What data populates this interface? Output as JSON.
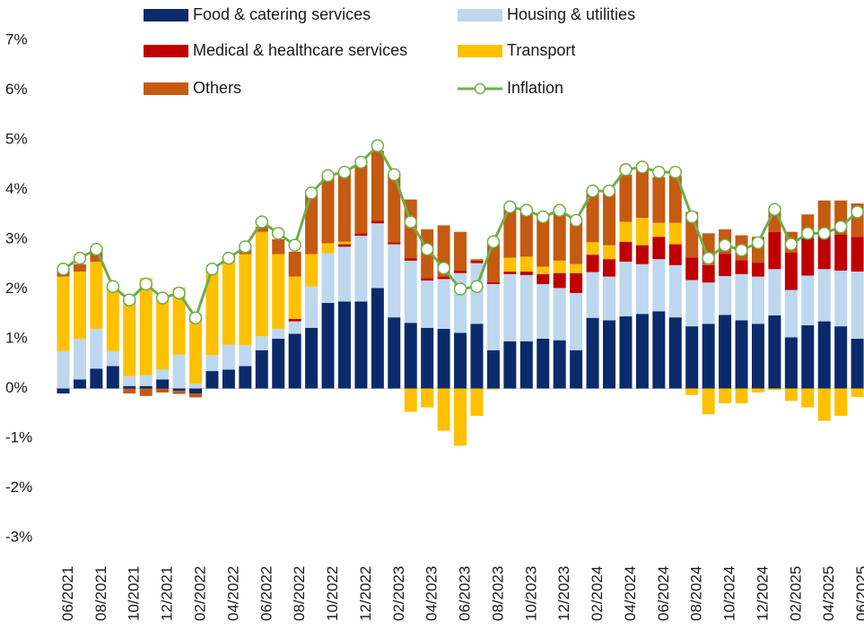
{
  "chart_data": {
    "type": "bar",
    "stacked": true,
    "categories": [
      "06/2021",
      null,
      "08/2021",
      null,
      "10/2021",
      null,
      "12/2021",
      null,
      "02/2022",
      null,
      "04/2022",
      null,
      "06/2022",
      null,
      "08/2022",
      null,
      "10/2022",
      null,
      "12/2022",
      null,
      "02/2023",
      null,
      "04/2023",
      null,
      "06/2023",
      null,
      "08/2023",
      null,
      "10/2023",
      null,
      "12/2023",
      null,
      "02/2024",
      null,
      "04/2024",
      null,
      "06/2024",
      null,
      "08/2024",
      null,
      "10/2024",
      null,
      "12/2024",
      null,
      "02/2025",
      null,
      "04/2025",
      null,
      "06/2025"
    ],
    "series": [
      {
        "name": "Food & catering services",
        "color": "#0b2a6b",
        "values": [
          -0.1,
          0.18,
          0.4,
          0.45,
          0.05,
          0.05,
          0.18,
          -0.05,
          -0.1,
          0.35,
          0.38,
          0.45,
          0.77,
          1.0,
          1.1,
          1.22,
          1.72,
          1.75,
          1.75,
          2.02,
          1.43,
          1.32,
          1.22,
          1.2,
          1.12,
          1.3,
          0.77,
          0.95,
          0.95,
          1.0,
          0.97,
          0.77,
          1.42,
          1.37,
          1.45,
          1.5,
          1.55,
          1.43,
          1.25,
          1.3,
          1.48,
          1.37,
          1.3,
          1.47,
          1.03,
          1.27,
          1.35,
          1.25,
          1.0
        ]
      },
      {
        "name": "Housing & utilities",
        "color": "#bdd7ee",
        "values": [
          0.75,
          0.82,
          0.8,
          0.3,
          0.2,
          0.22,
          0.2,
          0.68,
          0.1,
          0.32,
          0.5,
          0.42,
          0.28,
          0.2,
          0.25,
          0.83,
          1.0,
          1.1,
          1.32,
          1.3,
          1.47,
          1.25,
          0.95,
          1.0,
          1.2,
          1.22,
          1.33,
          1.35,
          1.33,
          1.1,
          1.05,
          1.15,
          0.92,
          0.88,
          1.1,
          1.0,
          1.05,
          1.05,
          0.93,
          0.83,
          0.78,
          0.93,
          0.95,
          0.93,
          0.95,
          1.0,
          1.05,
          1.12,
          1.35
        ]
      },
      {
        "name": "Medical & healthcare services",
        "color": "#c00000",
        "values": [
          0,
          0,
          0,
          0,
          0,
          0,
          0,
          0,
          0,
          0,
          0,
          0,
          0,
          0,
          0.05,
          0,
          0,
          0.05,
          0.05,
          0.05,
          0.04,
          0.05,
          0.05,
          0.05,
          0.05,
          0.05,
          0.04,
          0.05,
          0.07,
          0.2,
          0.3,
          0.4,
          0.35,
          0.35,
          0.4,
          0.38,
          0.45,
          0.42,
          0.45,
          0.35,
          0.45,
          0.28,
          0.28,
          0.75,
          0.75,
          0.75,
          0.7,
          0.72,
          0.7
        ]
      },
      {
        "name": "Transport",
        "color": "#ffc000",
        "values": [
          1.5,
          1.35,
          1.35,
          1.25,
          1.5,
          1.95,
          1.47,
          1.35,
          1.4,
          1.73,
          1.67,
          1.83,
          2.1,
          1.5,
          0.85,
          0.65,
          0.2,
          0.05,
          0,
          0,
          0,
          -0.47,
          -0.38,
          -0.85,
          -1.15,
          -0.55,
          -0.02,
          0.28,
          0.3,
          0.15,
          0.25,
          0.18,
          0.25,
          0.28,
          0.4,
          0.55,
          0.28,
          0.43,
          -0.13,
          -0.52,
          -0.3,
          -0.3,
          -0.08,
          -0.03,
          -0.25,
          -0.38,
          -0.65,
          -0.55,
          -0.17
        ]
      },
      {
        "name": "Others",
        "color": "#c55a11",
        "values": [
          0.15,
          0.15,
          0.2,
          0.05,
          -0.1,
          -0.15,
          -0.08,
          -0.06,
          -0.08,
          0,
          0.05,
          0.1,
          0.1,
          0.3,
          0.5,
          1.2,
          1.33,
          1.35,
          1.38,
          1.41,
          1.36,
          1.18,
          0.98,
          1.03,
          0.78,
          0.03,
          0.76,
          0.97,
          0.93,
          1.0,
          0.95,
          0.85,
          1.01,
          1.07,
          0.95,
          0.97,
          0.92,
          0.95,
          0.92,
          0.64,
          0.49,
          0.5,
          0.52,
          0.4,
          0.42,
          0.48,
          0.68,
          0.69,
          0.67
        ]
      },
      {
        "name": "Inflation",
        "color": "#70ad47",
        "type": "line",
        "values": [
          2.4,
          2.62,
          2.8,
          2.05,
          1.78,
          2.1,
          1.82,
          1.92,
          1.42,
          2.4,
          2.62,
          2.85,
          3.35,
          3.12,
          2.88,
          3.93,
          4.28,
          4.35,
          4.55,
          4.88,
          4.3,
          3.35,
          2.8,
          2.42,
          2.0,
          2.05,
          2.95,
          3.65,
          3.58,
          3.45,
          3.58,
          3.38,
          3.97,
          3.97,
          4.4,
          4.45,
          4.35,
          4.35,
          3.45,
          2.62,
          2.88,
          2.78,
          2.93,
          3.6,
          2.9,
          3.12,
          3.12,
          3.25,
          3.55
        ]
      }
    ],
    "ylim": [
      -3,
      7
    ],
    "yticks": [
      {
        "value": -3,
        "label": "-3%"
      },
      {
        "value": -2,
        "label": "-2%"
      },
      {
        "value": -1,
        "label": "-1%"
      },
      {
        "value": 0,
        "label": "0%"
      },
      {
        "value": 1,
        "label": "1%"
      },
      {
        "value": 2,
        "label": "2%"
      },
      {
        "value": 3,
        "label": "3%"
      },
      {
        "value": 4,
        "label": "4%"
      },
      {
        "value": 5,
        "label": "5%"
      },
      {
        "value": 6,
        "label": "6%"
      },
      {
        "value": 7,
        "label": "7%"
      }
    ],
    "legend": "top"
  }
}
